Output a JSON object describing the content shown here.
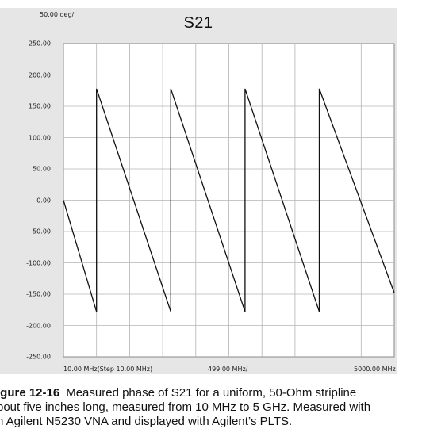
{
  "chart_data": {
    "type": "line",
    "title": "S21",
    "scale_label": "50.00 deg/",
    "ylim": [
      -250,
      250
    ],
    "y_ticks": [
      "250.00",
      "200.00",
      "150.00",
      "100.00",
      "50.00",
      "0.00",
      "-50.00",
      "-100.00",
      "-150.00",
      "-200.00",
      "-250.00"
    ],
    "y_tick_values": [
      250,
      200,
      150,
      100,
      50,
      0,
      -50,
      -100,
      -150,
      -200,
      -250
    ],
    "x_labels": {
      "start": "10.00 MHz(Step 10.00 MHz)",
      "center": "499.00 MHz/",
      "stop": "5000.00 MHz"
    },
    "xlim": [
      10,
      5000
    ],
    "x_unit": "MHz",
    "grid": true,
    "series": [
      {
        "points": [
          [
            10,
            0
          ],
          [
            509,
            -178
          ],
          [
            509,
            178
          ],
          [
            1629,
            -178
          ],
          [
            1629,
            178
          ],
          [
            2749,
            -178
          ],
          [
            2749,
            178
          ],
          [
            3869,
            -178
          ],
          [
            3869,
            178
          ],
          [
            5000,
            -148
          ]
        ]
      }
    ]
  },
  "caption": {
    "label": "igure 12-16",
    "line1": "Measured phase of S21 for a uniform, 50-Ohm stripline",
    "line2": "bout five inches long, measured from 10 MHz to 5 GHz. Measured with",
    "line3": "n Agilent N5230 VNA and displayed with Agilent’s PLTS."
  }
}
